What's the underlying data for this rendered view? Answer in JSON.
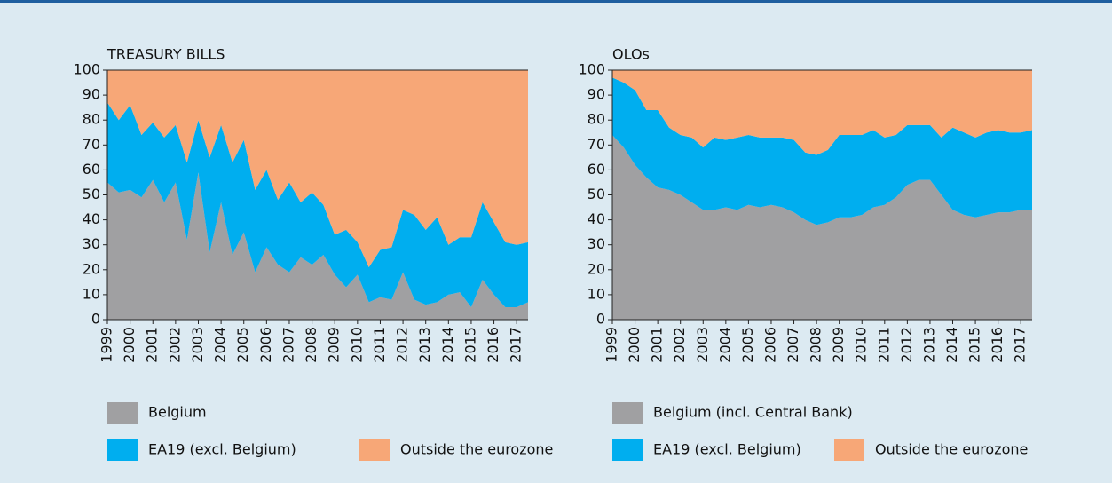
{
  "chart_data": [
    {
      "type": "stacked_area",
      "title": "TREASURY BILLS",
      "x": [
        1999,
        1999.5,
        2000,
        2000.5,
        2001,
        2001.5,
        2002,
        2002.5,
        2003,
        2003.5,
        2004,
        2004.5,
        2005,
        2005.5,
        2006,
        2006.5,
        2007,
        2007.5,
        2008,
        2008.5,
        2009,
        2009.5,
        2010,
        2010.5,
        2011,
        2011.5,
        2012,
        2012.5,
        2013,
        2013.5,
        2014,
        2014.5,
        2015,
        2015.5,
        2016,
        2016.5,
        2017,
        2017.5
      ],
      "series": [
        {
          "name": "Belgium",
          "color": "#a0a0a2",
          "values": [
            55,
            51,
            52,
            49,
            56,
            47,
            55,
            32,
            59,
            27,
            47,
            26,
            35,
            19,
            29,
            22,
            19,
            25,
            22,
            26,
            18,
            13,
            18,
            7,
            9,
            8,
            19,
            8,
            6,
            7,
            10,
            11,
            5,
            16,
            10,
            5,
            5,
            7
          ]
        },
        {
          "name": "EA19 (excl. Belgium)",
          "color": "#00aeef",
          "values": [
            32,
            29,
            34,
            25,
            23,
            26,
            23,
            31,
            21,
            38,
            31,
            37,
            37,
            33,
            31,
            26,
            36,
            22,
            29,
            20,
            16,
            23,
            13,
            14,
            19,
            21,
            25,
            34,
            30,
            34,
            20,
            22,
            28,
            31,
            29,
            26,
            25,
            24
          ]
        },
        {
          "name": "Outside the eurozone",
          "color": "#f7a777",
          "values": [
            13,
            20,
            14,
            26,
            21,
            27,
            22,
            37,
            20,
            35,
            22,
            37,
            28,
            48,
            40,
            52,
            45,
            53,
            49,
            54,
            66,
            64,
            69,
            79,
            72,
            71,
            56,
            58,
            64,
            59,
            70,
            67,
            67,
            53,
            61,
            69,
            70,
            69
          ]
        }
      ],
      "xlim": [
        1999,
        2017.5
      ],
      "xticks": [
        1999,
        2000,
        2001,
        2002,
        2003,
        2004,
        2005,
        2006,
        2007,
        2008,
        2009,
        2010,
        2011,
        2012,
        2013,
        2014,
        2015,
        2016,
        2017
      ],
      "ylim": [
        0,
        100
      ],
      "yticks": [
        0,
        10,
        20,
        30,
        40,
        50,
        60,
        70,
        80,
        90,
        100
      ]
    },
    {
      "type": "stacked_area",
      "title": "OLOs",
      "x": [
        1999,
        1999.5,
        2000,
        2000.5,
        2001,
        2001.5,
        2002,
        2002.5,
        2003,
        2003.5,
        2004,
        2004.5,
        2005,
        2005.5,
        2006,
        2006.5,
        2007,
        2007.5,
        2008,
        2008.5,
        2009,
        2009.5,
        2010,
        2010.5,
        2011,
        2011.5,
        2012,
        2012.5,
        2013,
        2013.5,
        2014,
        2014.5,
        2015,
        2015.5,
        2016,
        2016.5,
        2017,
        2017.5
      ],
      "series": [
        {
          "name": "Belgium (incl. Central Bank)",
          "color": "#a0a0a2",
          "values": [
            74,
            69,
            62,
            57,
            53,
            52,
            50,
            47,
            44,
            44,
            45,
            44,
            46,
            45,
            46,
            45,
            43,
            40,
            38,
            39,
            41,
            41,
            42,
            45,
            46,
            49,
            54,
            56,
            56,
            50,
            44,
            42,
            41,
            42,
            43,
            43,
            44,
            44
          ]
        },
        {
          "name": "EA19 (excl. Belgium)",
          "color": "#00aeef",
          "values": [
            23,
            26,
            30,
            27,
            31,
            25,
            24,
            26,
            25,
            29,
            27,
            29,
            28,
            28,
            27,
            28,
            29,
            27,
            28,
            29,
            33,
            33,
            32,
            31,
            27,
            25,
            24,
            22,
            22,
            23,
            33,
            33,
            32,
            33,
            33,
            32,
            31,
            32
          ]
        },
        {
          "name": "Outside the eurozone",
          "color": "#f7a777",
          "values": [
            3,
            5,
            8,
            16,
            16,
            23,
            26,
            27,
            31,
            27,
            28,
            27,
            26,
            27,
            27,
            27,
            28,
            33,
            34,
            32,
            26,
            26,
            26,
            24,
            27,
            26,
            22,
            22,
            22,
            27,
            23,
            25,
            27,
            25,
            24,
            25,
            25,
            24
          ]
        }
      ],
      "xlim": [
        1999,
        2017.5
      ],
      "xticks": [
        1999,
        2000,
        2001,
        2002,
        2003,
        2004,
        2005,
        2006,
        2007,
        2008,
        2009,
        2010,
        2011,
        2012,
        2013,
        2014,
        2015,
        2016,
        2017
      ],
      "ylim": [
        0,
        100
      ],
      "yticks": [
        0,
        10,
        20,
        30,
        40,
        50,
        60,
        70,
        80,
        90,
        100
      ]
    }
  ]
}
